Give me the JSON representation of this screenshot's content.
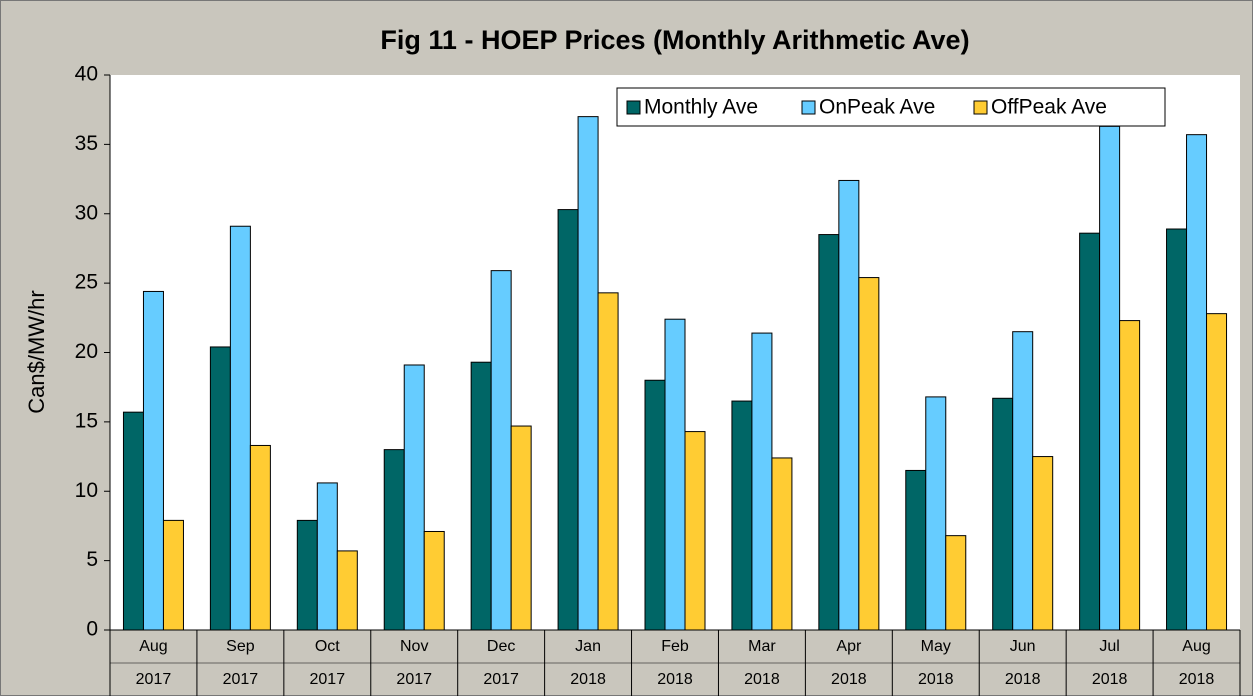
{
  "chart_data": {
    "type": "bar",
    "title": "Fig 11 - HOEP Prices (Monthly Arithmetic Ave)",
    "y_label": "Can$/MW/hr",
    "categories": [
      "Aug",
      "Sep",
      "Oct",
      "Nov",
      "Dec",
      "Jan",
      "Feb",
      "Mar",
      "Apr",
      "May",
      "Jun",
      "Jul",
      "Aug"
    ],
    "years": [
      "2017",
      "2017",
      "2017",
      "2017",
      "2017",
      "2018",
      "2018",
      "2018",
      "2018",
      "2018",
      "2018",
      "2018",
      "2018"
    ],
    "series": [
      {
        "name": "Monthly Ave",
        "color": "#006666",
        "values": [
          15.7,
          20.4,
          7.9,
          13.0,
          19.3,
          30.3,
          18.0,
          16.5,
          28.5,
          11.5,
          16.7,
          28.6,
          28.9
        ]
      },
      {
        "name": "OnPeak Ave",
        "color": "#66ccff",
        "values": [
          24.4,
          29.1,
          10.6,
          19.1,
          25.9,
          37.0,
          22.4,
          21.4,
          32.4,
          16.8,
          21.5,
          36.3,
          35.7
        ]
      },
      {
        "name": "OffPeak Ave",
        "color": "#ffcc33",
        "values": [
          7.9,
          13.3,
          5.7,
          7.1,
          14.7,
          24.3,
          14.3,
          12.4,
          25.4,
          6.8,
          12.5,
          22.3,
          22.8
        ]
      }
    ],
    "ylim": [
      0,
      40
    ],
    "yticks": [
      0,
      5,
      10,
      15,
      20,
      25,
      30,
      35,
      40
    ],
    "grid": false,
    "legend": "top-right"
  }
}
